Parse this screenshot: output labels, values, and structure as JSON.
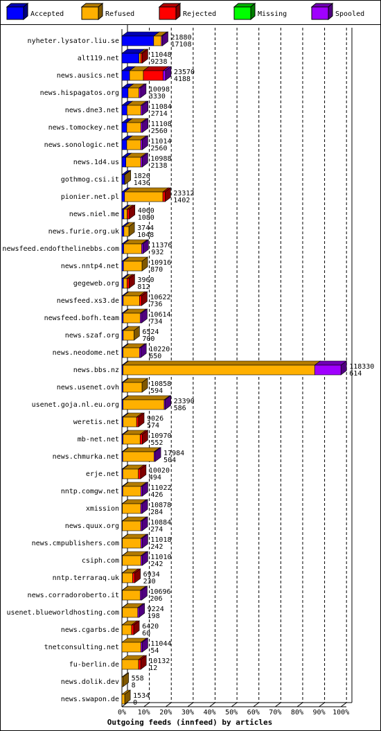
{
  "chart_data": {
    "type": "bar3d-stacked-horizontal",
    "title": "Outgoing feeds (innfeed) by articles",
    "categories": [
      "nyheter.lysator.liu.se",
      "alt119.net",
      "news.ausics.net",
      "news.hispagatos.org",
      "news.dne3.net",
      "news.tomockey.net",
      "news.sonologic.net",
      "news.1d4.us",
      "gothmog.csi.it",
      "pionier.net.pl",
      "news.niel.me",
      "news.furie.org.uk",
      "newsfeed.endofthelinebbs.com",
      "news.nntp4.net",
      "gegeweb.org",
      "newsfeed.xs3.de",
      "newsfeed.bofh.team",
      "news.szaf.org",
      "news.neodome.net",
      "news.bbs.nz",
      "news.usenet.ovh",
      "usenet.goja.nl.eu.org",
      "weretis.net",
      "mb-net.net",
      "news.chmurka.net",
      "erje.net",
      "nntp.comgw.net",
      "xmission",
      "news.quux.org",
      "news.cmpublishers.com",
      "csiph.com",
      "nntp.terraraq.uk",
      "news.corradoroberto.it",
      "usenet.blueworldhosting.com",
      "news.cgarbs.de",
      "tnetconsulting.net",
      "fu-berlin.de",
      "news.dolik.dev",
      "news.swapon.de"
    ],
    "series": [
      {
        "name": "Accepted",
        "color": "#0000ff",
        "values": [
          14.5,
          7.8,
          3.5,
          2.8,
          2.3,
          2.2,
          2.2,
          1.8,
          1.2,
          1.2,
          0.9,
          0.9,
          0.8,
          0.7,
          0.7,
          0.6,
          0.6,
          0.6,
          0.5,
          0.5,
          0.5,
          0.5,
          0.5,
          0.5,
          0.4,
          0.4,
          0.4,
          0.2,
          0.2,
          0.2,
          0.2,
          0.2,
          0.2,
          0.2,
          0.1,
          0,
          0,
          0,
          0
        ]
      },
      {
        "name": "Refused",
        "color": "#ffb000",
        "values": [
          3.5,
          0.8,
          6.3,
          5.0,
          6.4,
          6.5,
          6.4,
          6.8,
          0.3,
          17.5,
          1.5,
          2.3,
          8.2,
          8.5,
          1.6,
          7.4,
          7.8,
          4.9,
          7.5,
          87.5,
          8.7,
          18.8,
          6.2,
          7.8,
          14.3,
          7.1,
          8.3,
          8.4,
          8.4,
          8.5,
          8.5,
          4.7,
          8.2,
          7.0,
          4.3,
          8.7,
          7.6,
          0.5,
          1.3
        ]
      },
      {
        "name": "Rejected",
        "color": "#ff0000",
        "values": [
          0,
          0.7,
          9.0,
          0,
          0,
          0,
          0,
          0,
          0,
          1.0,
          1.0,
          0,
          0,
          0,
          1.0,
          1.0,
          0,
          0,
          0,
          0,
          0,
          0,
          0.9,
          1.0,
          0,
          1.0,
          0,
          0,
          0,
          0,
          0,
          1.0,
          0,
          0,
          1.0,
          0,
          1.0,
          0,
          0
        ]
      },
      {
        "name": "Missing",
        "color": "#00ff00",
        "values": [
          0,
          0,
          0,
          0,
          0,
          0,
          0,
          0,
          0,
          0,
          0,
          0,
          0,
          0,
          0,
          0,
          0,
          0,
          0,
          0,
          0,
          0,
          0,
          0,
          0,
          0,
          0,
          0,
          0,
          0,
          0,
          0,
          0,
          0,
          0,
          0,
          0,
          0,
          0
        ]
      },
      {
        "name": "Spooled",
        "color": "#a000ff",
        "values": [
          0.5,
          0,
          1.1,
          0.7,
          0.7,
          0.7,
          0.7,
          0.7,
          0,
          0,
          0,
          0,
          0.6,
          0,
          0,
          0,
          0.6,
          0,
          0.6,
          12.0,
          0,
          0.5,
          0,
          0,
          0.5,
          0,
          0.6,
          0.6,
          0.6,
          0.6,
          0.6,
          0,
          0.6,
          0.6,
          0,
          0.6,
          0,
          0,
          0
        ]
      }
    ],
    "offered": [
      21880,
      11048,
      23570,
      10098,
      11084,
      11108,
      11014,
      10988,
      1826,
      23312,
      4060,
      3744,
      11376,
      10916,
      3960,
      10622,
      10614,
      6524,
      10220,
      118330,
      10858,
      23390,
      9026,
      10970,
      17984,
      10020,
      11022,
      10878,
      10884,
      11018,
      11010,
      6934,
      10696,
      9224,
      6420,
      11044,
      10132,
      558,
      1534
    ],
    "accepted": [
      17108,
      9238,
      4188,
      3330,
      2714,
      2560,
      2560,
      2138,
      1436,
      1402,
      1080,
      1048,
      932,
      870,
      812,
      736,
      734,
      700,
      650,
      614,
      594,
      586,
      574,
      552,
      504,
      494,
      426,
      284,
      274,
      242,
      242,
      230,
      206,
      198,
      60,
      54,
      12,
      8,
      0
    ],
    "xlim": [
      0,
      105
    ],
    "xticks": [
      {
        "value": 0,
        "label": "0%"
      },
      {
        "value": 10,
        "label": "10%"
      },
      {
        "value": 20,
        "label": "20%"
      },
      {
        "value": 30,
        "label": "30%"
      },
      {
        "value": 40,
        "label": "40%"
      },
      {
        "value": 50,
        "label": "50%"
      },
      {
        "value": 60,
        "label": "60%"
      },
      {
        "value": 70,
        "label": "70%"
      },
      {
        "value": 80,
        "label": "80%"
      },
      {
        "value": 90,
        "label": "90%"
      },
      {
        "value": 100,
        "label": "100%"
      }
    ],
    "grid": true
  }
}
